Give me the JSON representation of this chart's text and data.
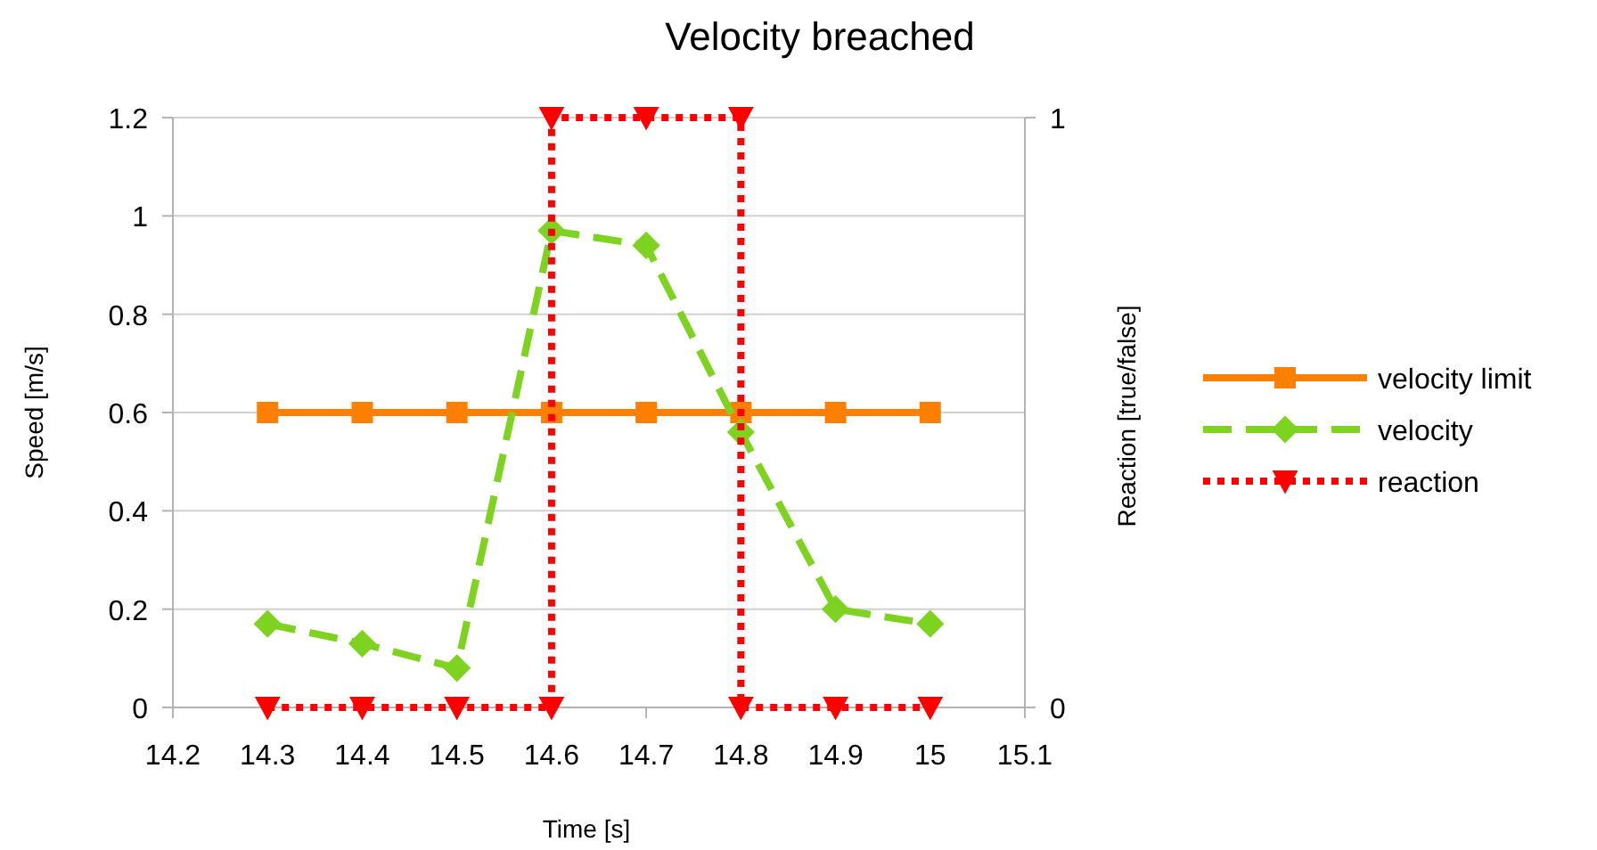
{
  "chart_data": {
    "type": "line",
    "title": "Velocity breached",
    "xlabel": "Time [s]",
    "ylabel": "Speed [m/s]",
    "y2label": "Reaction [true/false]",
    "x": [
      14.3,
      14.4,
      14.5,
      14.6,
      14.7,
      14.8,
      14.9,
      15
    ],
    "series": [
      {
        "name": "velocity limit",
        "color": "#ff8000",
        "values": [
          0.6,
          0.6,
          0.6,
          0.6,
          0.6,
          0.6,
          0.6,
          0.6
        ],
        "marker": "square",
        "line_style": "solid"
      },
      {
        "name": "velocity",
        "color": "#7ed321",
        "values": [
          0.17,
          0.13,
          0.08,
          0.97,
          0.94,
          0.56,
          0.2,
          0.17
        ],
        "marker": "diamond",
        "line_style": "dashed"
      },
      {
        "name": "reaction",
        "color": "#ff0000",
        "axis": "y2",
        "x": [
          14.3,
          14.4,
          14.5,
          14.6,
          14.6,
          14.7,
          14.8,
          14.8,
          14.9,
          15
        ],
        "values": [
          0,
          0,
          0,
          0,
          1,
          1,
          1,
          0,
          0,
          0
        ],
        "marker": "triangle",
        "line_style": "dotted"
      }
    ],
    "xlim": [
      14.2,
      15.1
    ],
    "xticks": [
      14.2,
      14.3,
      14.4,
      14.5,
      14.6,
      14.7,
      14.8,
      14.9,
      15,
      15.1
    ],
    "ylim": [
      0,
      1.2
    ],
    "yticks": [
      0,
      0.2,
      0.4,
      0.6,
      0.8,
      1,
      1.2
    ],
    "y2lim": [
      0,
      1
    ],
    "y2ticks": [
      0,
      1
    ],
    "grid": "y",
    "legend": "right"
  }
}
